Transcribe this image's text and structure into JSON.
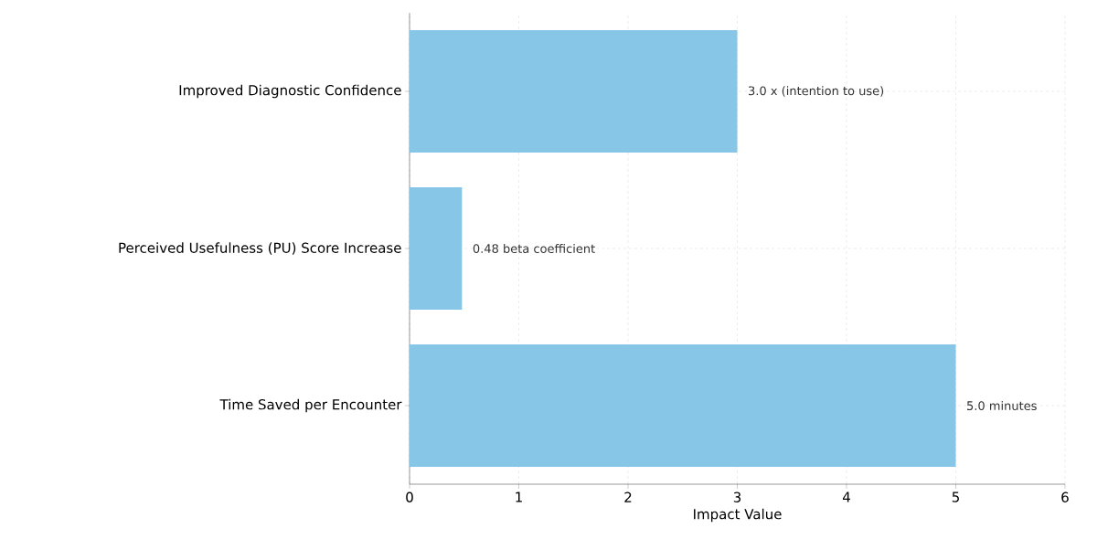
{
  "chart_data": {
    "type": "bar",
    "orientation": "horizontal",
    "categories": [
      "Improved Diagnostic Confidence",
      "Perceived Usefulness (PU) Score Increase",
      "Time Saved per Encounter"
    ],
    "values": [
      3.0,
      0.48,
      5.0
    ],
    "value_labels": [
      "3.0 x (intention to use)",
      "0.48 beta coefficient",
      "5.0 minutes"
    ],
    "color": "#87c6e6",
    "xlabel": "Impact Value",
    "xlim": [
      0,
      6
    ],
    "xticks": [
      0,
      1,
      2,
      3,
      4,
      5,
      6
    ],
    "grid": true
  }
}
